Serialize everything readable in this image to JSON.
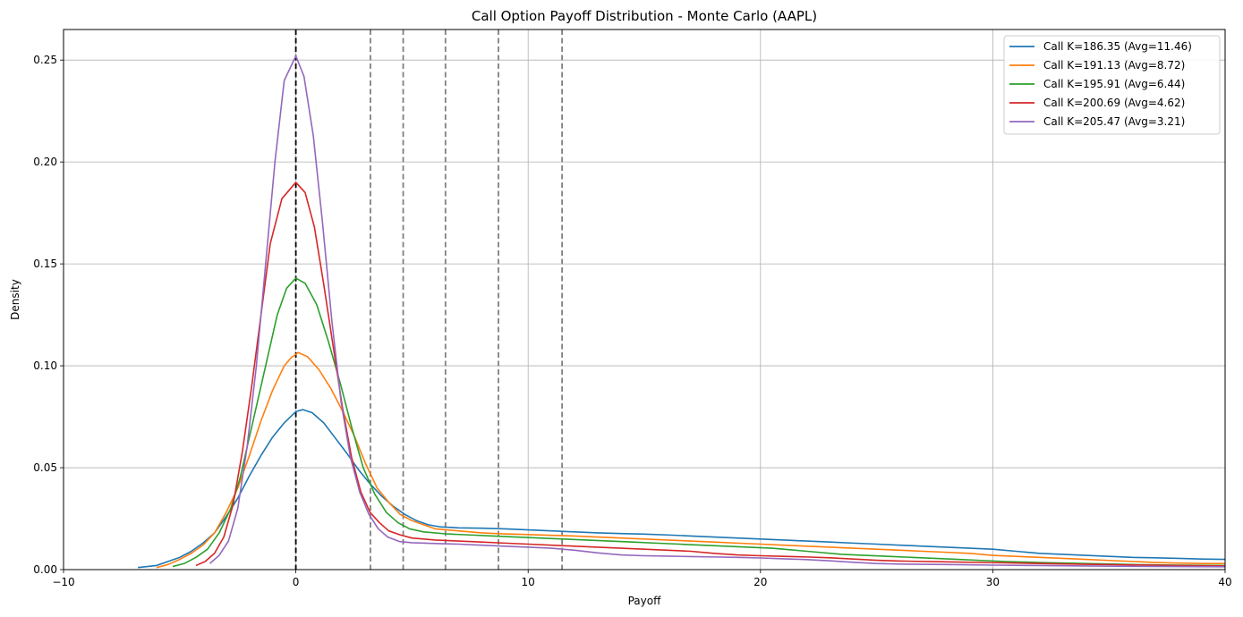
{
  "chart_data": {
    "type": "line",
    "title": "Call Option Payoff Distribution - Monte Carlo (AAPL)",
    "xlabel": "Payoff",
    "ylabel": "Density",
    "xlim": [
      -10,
      40
    ],
    "ylim": [
      0,
      0.265
    ],
    "xticks": [
      "−10",
      "0",
      "10",
      "20",
      "30",
      "40"
    ],
    "xtick_values": [
      -10,
      0,
      10,
      20,
      30,
      40
    ],
    "yticks": [
      "0.00",
      "0.05",
      "0.10",
      "0.15",
      "0.20",
      "0.25"
    ],
    "ytick_values": [
      0,
      0.05,
      0.1,
      0.15,
      0.2,
      0.25
    ],
    "grid": true,
    "legend_position": "top-right",
    "zero_line": {
      "x": 0,
      "color": "#000000"
    },
    "average_lines": {
      "x": [
        3.21,
        4.62,
        6.44,
        8.72,
        11.46
      ],
      "color": "#808080"
    },
    "series": [
      {
        "name": "Call K=186.35 (Avg=11.46)",
        "color": "#1f77b4",
        "points": [
          [
            -6.8,
            0.001
          ],
          [
            -6,
            0.002
          ],
          [
            -5.5,
            0.004
          ],
          [
            -5,
            0.006
          ],
          [
            -4.5,
            0.009
          ],
          [
            -4,
            0.013
          ],
          [
            -3.5,
            0.018
          ],
          [
            -3,
            0.026
          ],
          [
            -2.5,
            0.035
          ],
          [
            -2,
            0.046
          ],
          [
            -1.5,
            0.056
          ],
          [
            -1,
            0.065
          ],
          [
            -0.5,
            0.072
          ],
          [
            0,
            0.0775
          ],
          [
            0.3,
            0.0785
          ],
          [
            0.7,
            0.077
          ],
          [
            1.2,
            0.072
          ],
          [
            1.6,
            0.066
          ],
          [
            2.2,
            0.057
          ],
          [
            2.7,
            0.049
          ],
          [
            3.2,
            0.042
          ],
          [
            3.7,
            0.036
          ],
          [
            4.2,
            0.031
          ],
          [
            4.7,
            0.027
          ],
          [
            5.2,
            0.024
          ],
          [
            5.7,
            0.022
          ],
          [
            6.2,
            0.021
          ],
          [
            7,
            0.0205
          ],
          [
            8,
            0.0203
          ],
          [
            9,
            0.02
          ],
          [
            10,
            0.0195
          ],
          [
            11,
            0.019
          ],
          [
            12,
            0.0185
          ],
          [
            13,
            0.018
          ],
          [
            14,
            0.0177
          ],
          [
            15,
            0.0174
          ],
          [
            16,
            0.017
          ],
          [
            17,
            0.0165
          ],
          [
            18,
            0.016
          ],
          [
            19,
            0.0155
          ],
          [
            20,
            0.015
          ],
          [
            21,
            0.0145
          ],
          [
            22,
            0.014
          ],
          [
            23,
            0.0135
          ],
          [
            24,
            0.013
          ],
          [
            25,
            0.0125
          ],
          [
            26,
            0.012
          ],
          [
            27,
            0.0115
          ],
          [
            28,
            0.011
          ],
          [
            29,
            0.0105
          ],
          [
            30,
            0.01
          ],
          [
            31,
            0.009
          ],
          [
            32,
            0.008
          ],
          [
            33,
            0.0075
          ],
          [
            34,
            0.007
          ],
          [
            35,
            0.0065
          ],
          [
            36,
            0.006
          ],
          [
            37,
            0.0058
          ],
          [
            38,
            0.0055
          ],
          [
            39,
            0.0052
          ],
          [
            40,
            0.005
          ]
        ]
      },
      {
        "name": "Call K=191.13 (Avg=8.72)",
        "color": "#ff7f0e",
        "points": [
          [
            -6,
            0.001
          ],
          [
            -5.5,
            0.0025
          ],
          [
            -5,
            0.005
          ],
          [
            -4.5,
            0.008
          ],
          [
            -4,
            0.012
          ],
          [
            -3.5,
            0.018
          ],
          [
            -3,
            0.028
          ],
          [
            -2.5,
            0.04
          ],
          [
            -2,
            0.056
          ],
          [
            -1.5,
            0.073
          ],
          [
            -1,
            0.088
          ],
          [
            -0.5,
            0.1
          ],
          [
            -0.2,
            0.104
          ],
          [
            0.1,
            0.1065
          ],
          [
            0.5,
            0.1045
          ],
          [
            1,
            0.098
          ],
          [
            1.5,
            0.089
          ],
          [
            2,
            0.078
          ],
          [
            2.5,
            0.066
          ],
          [
            3,
            0.052
          ],
          [
            3.5,
            0.04
          ],
          [
            4,
            0.033
          ],
          [
            4.5,
            0.027
          ],
          [
            5,
            0.024
          ],
          [
            5.5,
            0.022
          ],
          [
            6,
            0.02
          ],
          [
            7,
            0.019
          ],
          [
            8,
            0.018
          ],
          [
            9,
            0.0175
          ],
          [
            10,
            0.0172
          ],
          [
            11,
            0.0168
          ],
          [
            12,
            0.0165
          ],
          [
            13,
            0.016
          ],
          [
            14,
            0.0155
          ],
          [
            15,
            0.015
          ],
          [
            16,
            0.0145
          ],
          [
            17,
            0.014
          ],
          [
            18,
            0.0135
          ],
          [
            19,
            0.013
          ],
          [
            20,
            0.0125
          ],
          [
            21,
            0.012
          ],
          [
            22,
            0.0115
          ],
          [
            23,
            0.011
          ],
          [
            24,
            0.0105
          ],
          [
            25,
            0.01
          ],
          [
            26,
            0.0095
          ],
          [
            27,
            0.009
          ],
          [
            28,
            0.0085
          ],
          [
            29,
            0.008
          ],
          [
            30,
            0.007
          ],
          [
            31,
            0.0065
          ],
          [
            32,
            0.006
          ],
          [
            33,
            0.0055
          ],
          [
            34,
            0.005
          ],
          [
            35,
            0.0045
          ],
          [
            36,
            0.004
          ],
          [
            37,
            0.0035
          ],
          [
            38,
            0.0032
          ],
          [
            39,
            0.003
          ],
          [
            40,
            0.003
          ]
        ]
      },
      {
        "name": "Call K=195.91 (Avg=6.44)",
        "color": "#2ca02c",
        "points": [
          [
            -5.3,
            0.0015
          ],
          [
            -4.8,
            0.003
          ],
          [
            -4.3,
            0.006
          ],
          [
            -3.8,
            0.01
          ],
          [
            -3.3,
            0.018
          ],
          [
            -2.8,
            0.03
          ],
          [
            -2.4,
            0.045
          ],
          [
            -2,
            0.065
          ],
          [
            -1.6,
            0.085
          ],
          [
            -1.2,
            0.105
          ],
          [
            -0.8,
            0.125
          ],
          [
            -0.4,
            0.138
          ],
          [
            0,
            0.143
          ],
          [
            0.4,
            0.1405
          ],
          [
            0.9,
            0.13
          ],
          [
            1.4,
            0.112
          ],
          [
            1.9,
            0.092
          ],
          [
            2.4,
            0.07
          ],
          [
            2.9,
            0.05
          ],
          [
            3.4,
            0.037
          ],
          [
            3.9,
            0.028
          ],
          [
            4.4,
            0.023
          ],
          [
            4.9,
            0.02
          ],
          [
            5.5,
            0.0185
          ],
          [
            6.5,
            0.0175
          ],
          [
            7.5,
            0.017
          ],
          [
            8.5,
            0.0165
          ],
          [
            9.5,
            0.016
          ],
          [
            10.5,
            0.0155
          ],
          [
            11.5,
            0.015
          ],
          [
            12.5,
            0.0145
          ],
          [
            13.5,
            0.014
          ],
          [
            14.5,
            0.0135
          ],
          [
            15.5,
            0.013
          ],
          [
            16.5,
            0.0125
          ],
          [
            17.5,
            0.012
          ],
          [
            18.5,
            0.0115
          ],
          [
            19.5,
            0.011
          ],
          [
            20.5,
            0.0105
          ],
          [
            21.5,
            0.0095
          ],
          [
            22.5,
            0.0085
          ],
          [
            23.5,
            0.0075
          ],
          [
            24.5,
            0.007
          ],
          [
            25.5,
            0.0065
          ],
          [
            26.5,
            0.006
          ],
          [
            27.5,
            0.0055
          ],
          [
            28.5,
            0.005
          ],
          [
            29.5,
            0.0045
          ],
          [
            30.5,
            0.004
          ],
          [
            32,
            0.0035
          ],
          [
            34,
            0.003
          ],
          [
            36,
            0.0025
          ],
          [
            38,
            0.0022
          ],
          [
            40,
            0.002
          ]
        ]
      },
      {
        "name": "Call K=200.69 (Avg=4.62)",
        "color": "#d62728",
        "points": [
          [
            -4.3,
            0.002
          ],
          [
            -3.9,
            0.004
          ],
          [
            -3.5,
            0.008
          ],
          [
            -3.1,
            0.016
          ],
          [
            -2.7,
            0.032
          ],
          [
            -2.3,
            0.058
          ],
          [
            -1.9,
            0.09
          ],
          [
            -1.5,
            0.125
          ],
          [
            -1.1,
            0.16
          ],
          [
            -0.6,
            0.182
          ],
          [
            0,
            0.19
          ],
          [
            0.4,
            0.185
          ],
          [
            0.8,
            0.168
          ],
          [
            1.2,
            0.14
          ],
          [
            1.6,
            0.11
          ],
          [
            2,
            0.08
          ],
          [
            2.4,
            0.055
          ],
          [
            2.8,
            0.038
          ],
          [
            3.2,
            0.028
          ],
          [
            3.6,
            0.023
          ],
          [
            4,
            0.019
          ],
          [
            4.5,
            0.017
          ],
          [
            5,
            0.0155
          ],
          [
            6,
            0.0145
          ],
          [
            7,
            0.014
          ],
          [
            8,
            0.0135
          ],
          [
            9,
            0.013
          ],
          [
            10,
            0.0125
          ],
          [
            11,
            0.012
          ],
          [
            12,
            0.0115
          ],
          [
            13,
            0.011
          ],
          [
            14,
            0.0105
          ],
          [
            15,
            0.01
          ],
          [
            16,
            0.0095
          ],
          [
            17,
            0.009
          ],
          [
            18,
            0.008
          ],
          [
            19,
            0.0072
          ],
          [
            20,
            0.0068
          ],
          [
            21,
            0.0065
          ],
          [
            22,
            0.0062
          ],
          [
            23,
            0.0058
          ],
          [
            24,
            0.0052
          ],
          [
            25,
            0.0046
          ],
          [
            26,
            0.0042
          ],
          [
            28,
            0.0038
          ],
          [
            30,
            0.0034
          ],
          [
            32,
            0.003
          ],
          [
            34,
            0.0026
          ],
          [
            36,
            0.0023
          ],
          [
            38,
            0.002
          ],
          [
            40,
            0.0018
          ]
        ]
      },
      {
        "name": "Call K=205.47 (Avg=3.21)",
        "color": "#9467bd",
        "points": [
          [
            -3.7,
            0.003
          ],
          [
            -3.3,
            0.007
          ],
          [
            -2.9,
            0.014
          ],
          [
            -2.5,
            0.03
          ],
          [
            -2.1,
            0.06
          ],
          [
            -1.7,
            0.1
          ],
          [
            -1.3,
            0.15
          ],
          [
            -0.9,
            0.2
          ],
          [
            -0.5,
            0.24
          ],
          [
            0,
            0.252
          ],
          [
            0.35,
            0.242
          ],
          [
            0.75,
            0.213
          ],
          [
            1.15,
            0.17
          ],
          [
            1.55,
            0.122
          ],
          [
            1.95,
            0.082
          ],
          [
            2.35,
            0.055
          ],
          [
            2.75,
            0.038
          ],
          [
            3.15,
            0.027
          ],
          [
            3.55,
            0.02
          ],
          [
            3.95,
            0.016
          ],
          [
            4.45,
            0.0138
          ],
          [
            5,
            0.0132
          ],
          [
            6,
            0.0128
          ],
          [
            7,
            0.0125
          ],
          [
            8,
            0.012
          ],
          [
            9,
            0.0115
          ],
          [
            10,
            0.011
          ],
          [
            11,
            0.0105
          ],
          [
            12,
            0.0095
          ],
          [
            13,
            0.0082
          ],
          [
            14,
            0.0072
          ],
          [
            15,
            0.0068
          ],
          [
            16,
            0.0066
          ],
          [
            17,
            0.0064
          ],
          [
            18,
            0.0062
          ],
          [
            19,
            0.006
          ],
          [
            20,
            0.0057
          ],
          [
            21,
            0.0053
          ],
          [
            22,
            0.0049
          ],
          [
            23,
            0.0043
          ],
          [
            24,
            0.0036
          ],
          [
            25,
            0.003
          ],
          [
            26,
            0.0027
          ],
          [
            28,
            0.0025
          ],
          [
            30,
            0.0022
          ],
          [
            32,
            0.002
          ],
          [
            34,
            0.0018
          ],
          [
            36,
            0.0016
          ],
          [
            38,
            0.0015
          ],
          [
            40,
            0.0014
          ]
        ]
      }
    ]
  }
}
